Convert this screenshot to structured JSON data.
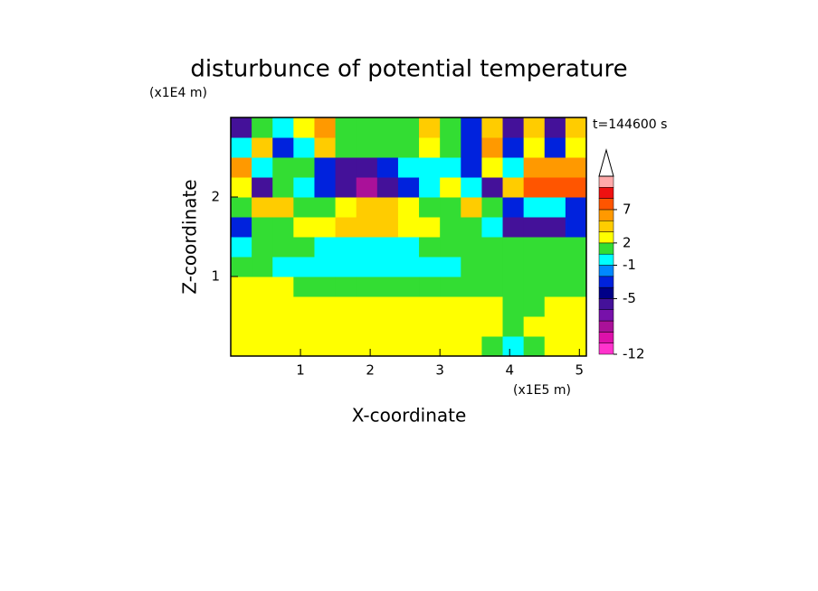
{
  "chart_data": {
    "type": "contour",
    "title": "disturbunce of potential temperature",
    "y_unit": "(x1E4 m)",
    "x_unit": "(x1E5 m)",
    "time_label": "t=144600 s",
    "xlabel": "X-coordinate",
    "ylabel": "Z-coordinate",
    "xlim": [
      0,
      5.1
    ],
    "ylim": [
      0,
      3
    ],
    "xticks": [
      1,
      2,
      3,
      4,
      5
    ],
    "yticks": [
      1,
      2
    ],
    "x": [
      0.15,
      0.45,
      0.75,
      1.05,
      1.35,
      1.65,
      1.95,
      2.25,
      2.55,
      2.85,
      3.15,
      3.45,
      3.75,
      4.05,
      4.35,
      4.65,
      4.95
    ],
    "y": [
      0.125,
      0.375,
      0.625,
      0.875,
      1.125,
      1.375,
      1.625,
      1.875,
      2.125,
      2.375,
      2.625,
      2.875
    ],
    "z": [
      [
        2.5,
        2.5,
        2.5,
        2.5,
        2.5,
        2.5,
        2.5,
        2.5,
        2.5,
        2.5,
        2.5,
        2.5,
        1,
        -0.5,
        1,
        2.5,
        2.5
      ],
      [
        2.5,
        2.5,
        2.5,
        2.5,
        2.5,
        2.5,
        2.5,
        2.5,
        2.5,
        2.5,
        2.5,
        2.5,
        2.5,
        1,
        2.5,
        2.5,
        2.5
      ],
      [
        2.5,
        2.5,
        2.5,
        2.5,
        2.5,
        2,
        2,
        2,
        2,
        2,
        2,
        2,
        2,
        1,
        1,
        2,
        2
      ],
      [
        2,
        2,
        2,
        1,
        1,
        0.5,
        0.5,
        0.5,
        1,
        1,
        1,
        1,
        0.5,
        0.5,
        0.5,
        1,
        1
      ],
      [
        0.5,
        0.5,
        -0.5,
        -0.5,
        -0.5,
        -0.5,
        -0.5,
        -0.5,
        -0.5,
        -0.5,
        -0.5,
        0.5,
        0.5,
        1,
        1,
        0.5,
        0.5
      ],
      [
        -0.5,
        0.5,
        0.5,
        0.5,
        -0.5,
        -0.5,
        -0.5,
        -0.5,
        -0.5,
        0.5,
        0.5,
        0.5,
        0.5,
        0.5,
        0.5,
        0.5,
        0.5
      ],
      [
        -2.5,
        0.5,
        0.5,
        2.5,
        2.5,
        4,
        4,
        4,
        2.5,
        2.5,
        0.5,
        0.5,
        -0.5,
        -5.5,
        -5.5,
        -5.5,
        -2.5
      ],
      [
        1,
        4,
        4,
        0.5,
        1,
        2.5,
        4,
        4,
        2.5,
        1,
        0.5,
        4,
        0.5,
        -2.5,
        -0.5,
        -0.5,
        -2.5
      ],
      [
        2.5,
        -5.5,
        1,
        -0.5,
        -2.5,
        -5.5,
        -8,
        -5.5,
        -2.5,
        -0.5,
        2.5,
        -0.5,
        -5.5,
        4,
        8,
        8,
        8
      ],
      [
        6,
        -0.5,
        1,
        0.5,
        -2.5,
        -5.5,
        -5.5,
        -2.5,
        -0.5,
        -0.5,
        -0.5,
        -2.5,
        2.5,
        -0.5,
        6,
        6,
        6
      ],
      [
        -0.5,
        4,
        -2.5,
        -0.5,
        4,
        0.5,
        0.5,
        0.5,
        0.5,
        2.5,
        1,
        -2.5,
        6,
        -2.5,
        2.5,
        -2.5,
        2.5
      ],
      [
        -5.5,
        1,
        -0.5,
        2.5,
        6,
        0.5,
        1,
        0.5,
        1,
        4,
        1,
        -2.5,
        4,
        -5.5,
        4,
        -5.5,
        4
      ]
    ],
    "levels": [
      -12,
      -10,
      -8,
      -7,
      -6,
      -5,
      -3,
      -2,
      -1,
      0,
      2,
      3,
      5,
      7,
      9,
      11,
      13
    ],
    "colors": [
      "#ff33cc",
      "#dd11aa",
      "#aa1199",
      "#7711aa",
      "#441199",
      "#000088",
      "#0022dd",
      "#0088ff",
      "#00ffff",
      "#33dd33",
      "#ffff00",
      "#ffcc00",
      "#ff9900",
      "#ff5500",
      "#ee1111",
      "#ffaaaa"
    ],
    "colorbar_ticks": [
      -12,
      -5,
      -1,
      2,
      7
    ]
  }
}
